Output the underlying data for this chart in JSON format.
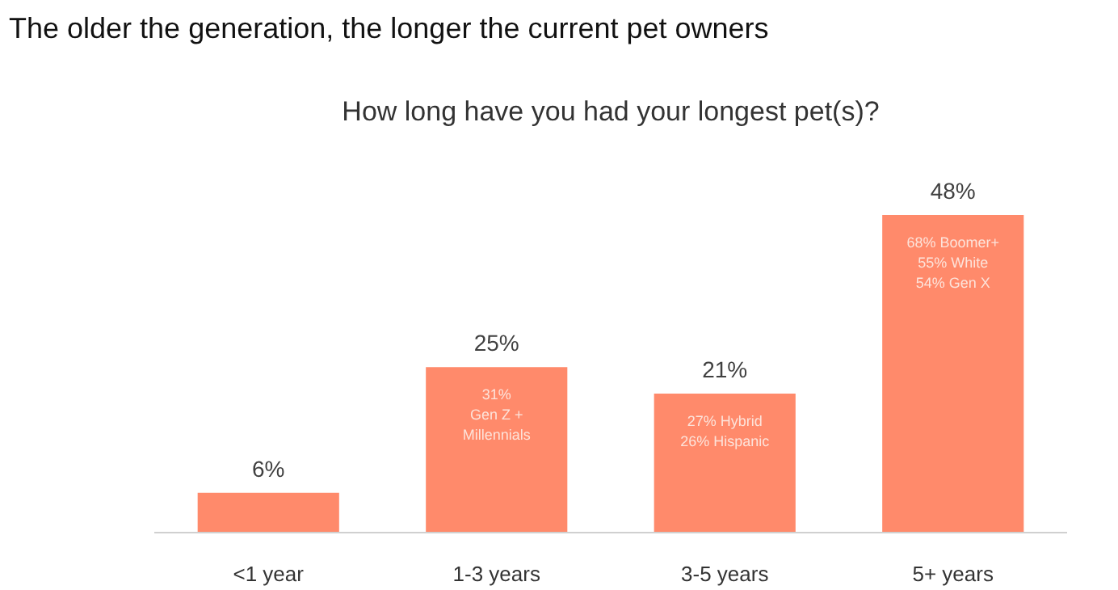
{
  "chart_data": {
    "type": "bar",
    "title": "The older the generation, the longer the current pet owners",
    "subtitle": "How long have you had your longest pet(s)?",
    "categories": [
      "<1 year",
      "1-3 years",
      "3-5 years",
      "5+ years"
    ],
    "values": [
      6,
      25,
      21,
      48
    ],
    "color": "#ff8a6b",
    "value_labels": [
      "6%",
      "25%",
      "21%",
      "48%"
    ],
    "annotations": [
      "31%\nGen Z +\nMillennials",
      "27% Hybrid\n26% Hispanic",
      "68% Boomer+\n55% White\n54% Gen X"
    ]
  }
}
